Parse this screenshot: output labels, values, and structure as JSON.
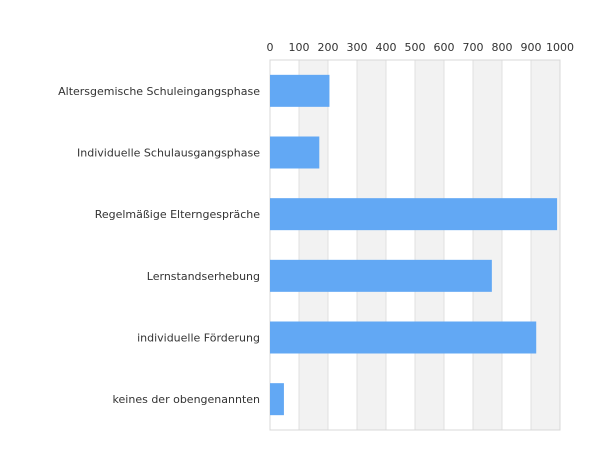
{
  "chart_data": {
    "type": "bar",
    "orientation": "horizontal",
    "categories": [
      "Altersgemische Schuleingangsphase",
      "Individuelle Schulausgangsphase",
      "Regelmäßige Elterngespräche",
      "Lernstandserhebung",
      "individuelle Förderung",
      "keines der obengenannten"
    ],
    "values": [
      205,
      170,
      990,
      765,
      918,
      48
    ],
    "xlim": [
      0,
      1000
    ],
    "x_ticks": [
      0,
      100,
      200,
      300,
      400,
      500,
      600,
      700,
      800,
      900,
      1000
    ],
    "x_axis_position": "top",
    "bar_color": "#62a8f4",
    "band_color": "#f2f2f2",
    "grid_color": "#e0e0e0",
    "grid": true,
    "title": "",
    "xlabel": "",
    "ylabel": ""
  }
}
